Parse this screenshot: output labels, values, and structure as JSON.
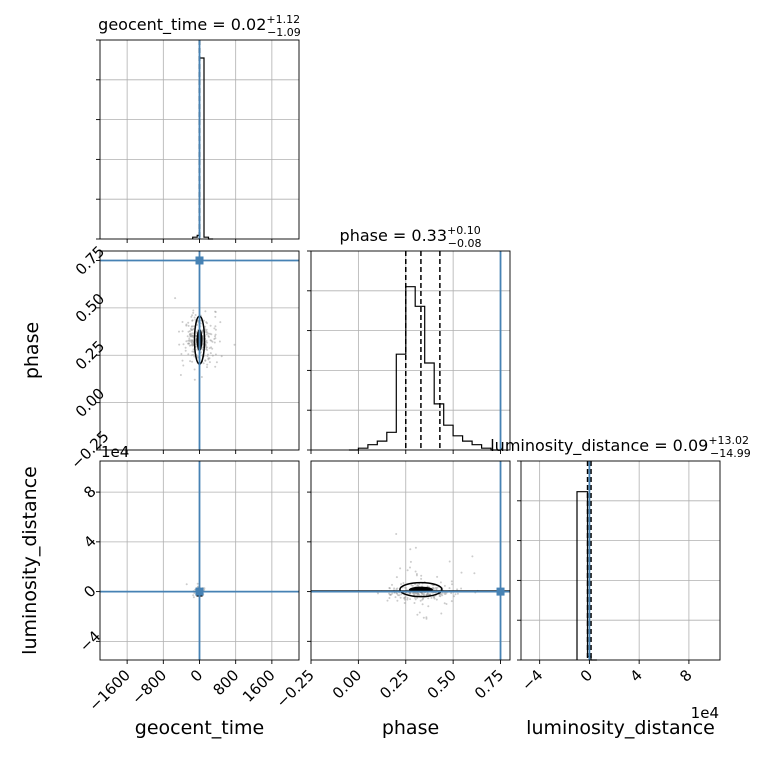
{
  "chart_data": {
    "type": "corner",
    "colors": {
      "truth": "#4682b4",
      "hist": "#000000",
      "grid": "#b0b0b0",
      "scatter": "#9a9a9a"
    },
    "parameters": [
      {
        "key": "geocent_time",
        "label": "geocent_time",
        "median": "0.02",
        "plus": "+1.12",
        "minus": "−1.09",
        "range": [
          -2200,
          2200
        ],
        "ticks": [
          -1600,
          -800,
          0,
          800,
          1600
        ],
        "tick_labels": [
          "−1600",
          "−800",
          "0",
          "800",
          "1600"
        ],
        "truth": 0,
        "quantiles": [
          -1.07,
          0.02,
          1.14
        ]
      },
      {
        "key": "phase",
        "label": "phase",
        "median": "0.33",
        "plus": "+0.10",
        "minus": "−0.08",
        "range": [
          -0.25,
          0.8
        ],
        "ticks": [
          -0.25,
          0,
          0.25,
          0.5,
          0.75
        ],
        "tick_labels": [
          "−0.25",
          "0.00",
          "0.25",
          "0.50",
          "0.75"
        ],
        "truth": 0.75,
        "quantiles": [
          0.25,
          0.33,
          0.43
        ]
      },
      {
        "key": "luminosity_distance",
        "label": "luminosity_distance",
        "median": "0.09",
        "plus": "+13.02",
        "minus": "−14.99",
        "range": [
          -5.5,
          10.5
        ],
        "ticks": [
          -4,
          0,
          4,
          8
        ],
        "tick_labels": [
          "−4",
          "0",
          "4",
          "8"
        ],
        "truth": 0,
        "quantiles": [
          -0.15,
          0.0,
          0.13
        ],
        "offset_text": "1e4"
      }
    ],
    "histograms": [
      {
        "param": "geocent_time",
        "edges": [
          -150,
          -50,
          0,
          100,
          200,
          300
        ],
        "counts": [
          0.01,
          0.02,
          1.0,
          0.01,
          0.0
        ],
        "ymax": 1.0
      },
      {
        "param": "phase",
        "edges": [
          -0.05,
          0.0,
          0.05,
          0.1,
          0.15,
          0.2,
          0.25,
          0.3,
          0.35,
          0.4,
          0.45,
          0.5,
          0.55,
          0.6,
          0.65,
          0.7,
          0.75
        ],
        "counts": [
          0.0,
          0.01,
          0.03,
          0.05,
          0.1,
          0.54,
          0.92,
          0.81,
          0.49,
          0.26,
          0.14,
          0.08,
          0.05,
          0.03,
          0.01,
          0.0
        ],
        "ymax": 1.02
      },
      {
        "param": "luminosity_distance",
        "edges": [
          -1.0,
          -0.15,
          0.13,
          0.6
        ],
        "counts": [
          0.93,
          0.02,
          0.0
        ],
        "ymax": 1.0
      }
    ]
  }
}
